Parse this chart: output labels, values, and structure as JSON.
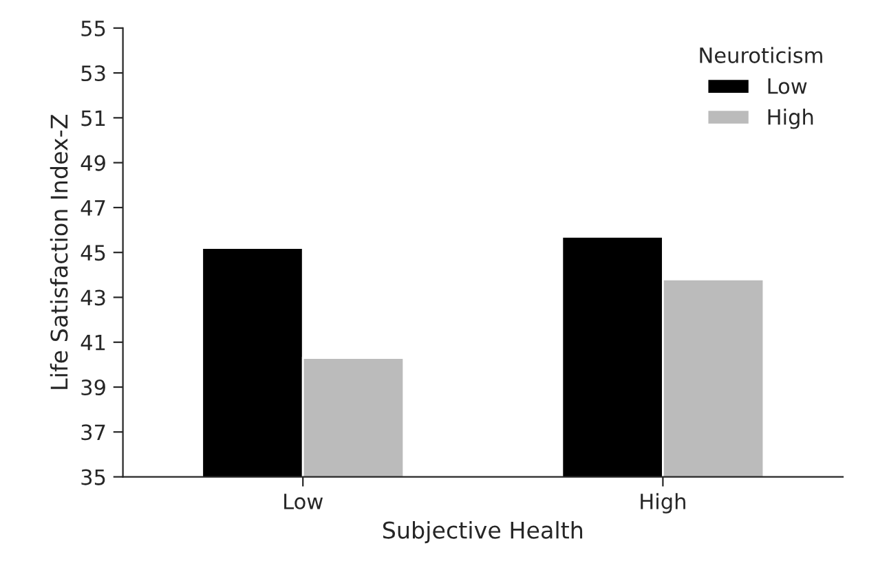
{
  "chart_data": {
    "type": "bar",
    "xlabel": "Subjective Health",
    "ylabel": "Life Satisfaction Index-Z",
    "legend_title": "Neuroticism",
    "categories": [
      "Low",
      "High"
    ],
    "series": [
      {
        "name": "Low",
        "color": "#000000",
        "values": [
          45.2,
          45.7
        ]
      },
      {
        "name": "High",
        "color": "#bbbbbb",
        "values": [
          40.3,
          43.8
        ]
      }
    ],
    "ylim": [
      35,
      55
    ],
    "yticks": [
      35,
      37,
      39,
      41,
      43,
      45,
      47,
      49,
      51,
      53,
      55
    ],
    "grid": false,
    "legend": "top right"
  }
}
